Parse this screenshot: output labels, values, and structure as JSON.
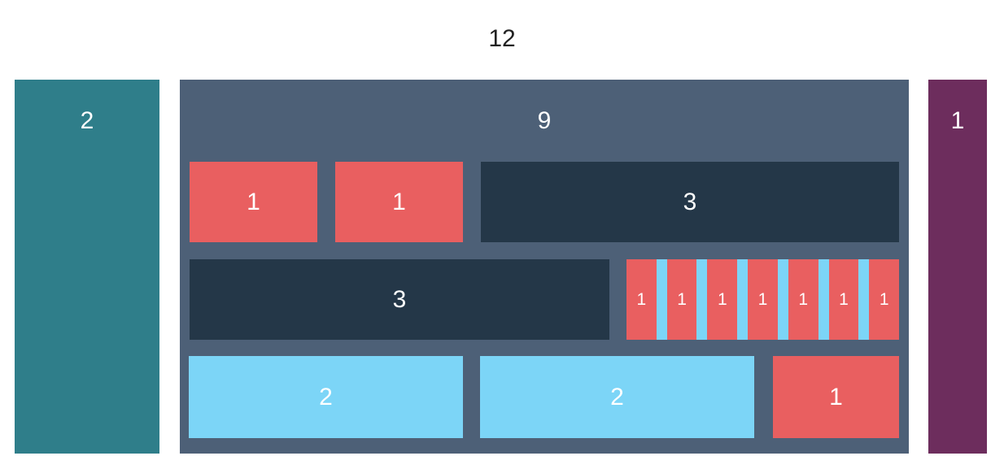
{
  "title": "12",
  "left_column": {
    "label": "2"
  },
  "container": {
    "label": "9"
  },
  "right_column": {
    "label": "1"
  },
  "row1": {
    "cell1": "1",
    "cell2": "1",
    "cell3": "3"
  },
  "row2": {
    "cell1": "3",
    "stripe_cells": [
      "1",
      "1",
      "1",
      "1",
      "1",
      "1",
      "1"
    ]
  },
  "row3": {
    "cell1": "2",
    "cell2": "2",
    "cell3": "1"
  },
  "colors": {
    "background": "#ffffff",
    "title_text": "#212121",
    "box_text": "#ffffff",
    "teal": "#2f7e8a",
    "slate": "#4d6077",
    "navy": "#243748",
    "red": "#e95f60",
    "sky": "#7cd5f7",
    "purple": "#6d2d5d"
  }
}
